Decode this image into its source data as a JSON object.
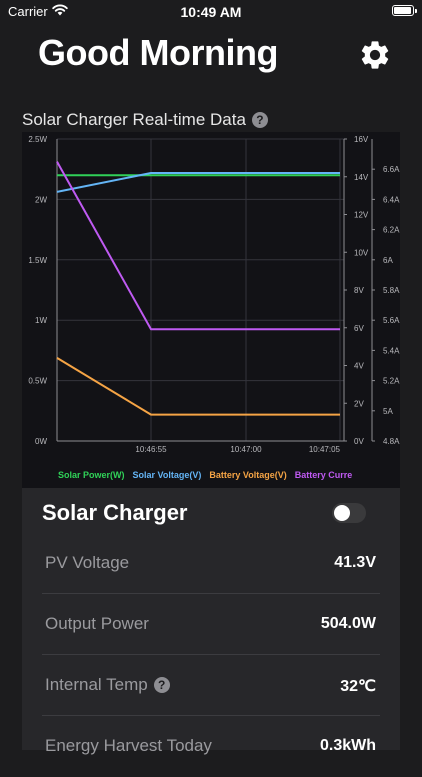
{
  "status_bar": {
    "carrier": "Carrier",
    "time": "10:49 AM",
    "battery_level": 1.0
  },
  "header": {
    "greeting": "Good Morning",
    "settings_icon": "gear-icon"
  },
  "chart_title": "Solar Charger Real-time Data",
  "help_icon": "question-mark-icon",
  "chart_data": {
    "type": "line",
    "x": [
      "10:46:51",
      "10:46:55",
      "10:47:00",
      "10:47:05"
    ],
    "x_tick_labels": [
      "10:46:55",
      "10:47:00",
      "10:47:05"
    ],
    "series": [
      {
        "name": "Solar Power(W)",
        "axis": "left",
        "color": "#30d158",
        "values": [
          2.2,
          2.2,
          2.2,
          2.2
        ]
      },
      {
        "name": "Solar Voltage(V)",
        "axis": "right-1",
        "color": "#64b5f6",
        "values": [
          13.2,
          14.2,
          14.2,
          14.2
        ]
      },
      {
        "name": "Battery Voltage(V)",
        "axis": "right-1",
        "color": "#f5a445",
        "values": [
          4.4,
          1.4,
          1.4,
          1.4
        ]
      },
      {
        "name": "Battery Current(A)",
        "axis": "right-2",
        "color": "#bf5af2",
        "values": [
          6.65,
          5.54,
          5.54,
          5.54
        ]
      }
    ],
    "legend_labels": [
      "Solar Power(W)",
      "Solar Voltage(V)",
      "Battery Voltage(V)",
      "Battery Curre"
    ],
    "axes": {
      "left": {
        "min": 0,
        "max": 2.5,
        "ticks": [
          "0W",
          "0.5W",
          "1W",
          "1.5W",
          "2W",
          "2.5W"
        ]
      },
      "right-1": {
        "min": 0,
        "max": 16,
        "ticks": [
          "0V",
          "2V",
          "4V",
          "6V",
          "8V",
          "10V",
          "12V",
          "14V",
          "16V"
        ]
      },
      "right-2": {
        "min": 4.8,
        "max": 6.8,
        "ticks": [
          "4.8A",
          "5A",
          "5.2A",
          "5.4A",
          "5.6A",
          "5.8A",
          "6A",
          "6.2A",
          "6.4A",
          "6.6A"
        ]
      }
    },
    "grid": true,
    "legend_position": "bottom"
  },
  "panel": {
    "title": "Solar Charger",
    "toggle_on": false,
    "rows": [
      {
        "label": "PV Voltage",
        "value": "41.3V",
        "help": false
      },
      {
        "label": "Output Power",
        "value": "504.0W",
        "help": false
      },
      {
        "label": "Internal Temp",
        "value": "32℃",
        "help": true
      },
      {
        "label": "Energy Harvest Today",
        "value": "0.3kWh",
        "help": false
      }
    ]
  }
}
